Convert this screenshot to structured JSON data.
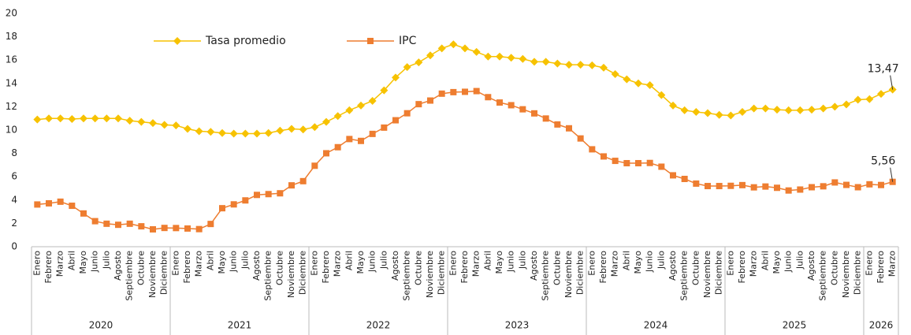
{
  "chart_data": {
    "type": "line",
    "categories": [
      "Enero",
      "Febrero",
      "Marzo",
      "Abril",
      "Mayo",
      "Junio",
      "Julio",
      "Agosto",
      "Septiembre",
      "Octubre",
      "Noviembre",
      "Diciembre",
      "Enero",
      "Febrero",
      "Marzo",
      "Abril",
      "Mayo",
      "Junio",
      "Julio",
      "Agosto",
      "Septiembre",
      "Octubre",
      "Noviembre",
      "Diciembre",
      "Enero",
      "Febrero",
      "Marzo",
      "Abril",
      "Mayo",
      "Junio",
      "Julio",
      "Agosto",
      "Septiembre",
      "Octubre",
      "Noviembre",
      "Diciembre",
      "Enero",
      "Febrero",
      "Marzo",
      "Abril",
      "Mayo",
      "Junio",
      "Julio",
      "Agosto",
      "Septiembre",
      "Octubre",
      "Noviembre",
      "Diciembre",
      "Enero",
      "Febrero",
      "Marzo",
      "Abril",
      "Mayo",
      "Junio",
      "Julio",
      "Agosto",
      "Septiembre",
      "Octubre",
      "Noviembre",
      "Diciembre",
      "Enero",
      "Febrero",
      "Marzo",
      "Abril",
      "Mayo",
      "Junio",
      "Julio",
      "Agosto",
      "Septiembre",
      "Octubre",
      "Noviembre",
      "Diciembre",
      "Enero",
      "Febrero",
      "Marzo"
    ],
    "category_groups": [
      "2020",
      "2021",
      "2022",
      "2023",
      "2024",
      "2025",
      "2026"
    ],
    "series": [
      {
        "name": "Tasa promedio",
        "color": "#f7c200",
        "marker": "diamond",
        "values": [
          10.9,
          11.0,
          11.0,
          10.95,
          11.0,
          11.0,
          11.0,
          11.0,
          10.8,
          10.7,
          10.6,
          10.45,
          10.4,
          10.1,
          9.9,
          9.85,
          9.75,
          9.7,
          9.7,
          9.7,
          9.75,
          9.95,
          10.1,
          10.05,
          10.25,
          10.7,
          11.2,
          11.7,
          12.1,
          12.5,
          13.4,
          14.5,
          15.4,
          15.8,
          16.4,
          17.0,
          17.35,
          17.0,
          16.7,
          16.3,
          16.3,
          16.2,
          16.1,
          15.85,
          15.85,
          15.7,
          15.6,
          15.6,
          15.55,
          15.35,
          14.8,
          14.35,
          14.0,
          13.85,
          13.0,
          12.1,
          11.7,
          11.55,
          11.45,
          11.3,
          11.25,
          11.55,
          11.85,
          11.85,
          11.75,
          11.7,
          11.7,
          11.75,
          11.85,
          12.0,
          12.2,
          12.6,
          12.65,
          13.1,
          13.47
        ],
        "value_labels": [
          null,
          null,
          null,
          null,
          null,
          null,
          null,
          null,
          null,
          null,
          null,
          null,
          null,
          null,
          null,
          null,
          null,
          null,
          null,
          null,
          null,
          null,
          null,
          null,
          null,
          null,
          null,
          null,
          null,
          null,
          null,
          null,
          null,
          null,
          null,
          null,
          null,
          null,
          null,
          null,
          null,
          null,
          null,
          null,
          null,
          null,
          null,
          null,
          null,
          null,
          null,
          null,
          null,
          null,
          null,
          null,
          null,
          null,
          null,
          null,
          null,
          null,
          null,
          null,
          null,
          null,
          null,
          null,
          null,
          null,
          null,
          null,
          null,
          null,
          "13,47"
        ]
      },
      {
        "name": "IPC",
        "color": "#ee7d30",
        "marker": "square",
        "values": [
          3.62,
          3.72,
          3.86,
          3.51,
          2.85,
          2.19,
          1.97,
          1.88,
          1.97,
          1.75,
          1.49,
          1.61,
          1.6,
          1.56,
          1.51,
          1.95,
          3.3,
          3.63,
          3.97,
          4.44,
          4.51,
          4.58,
          5.26,
          5.62,
          6.94,
          8.01,
          8.53,
          9.23,
          9.07,
          9.67,
          10.21,
          10.84,
          11.44,
          12.22,
          12.53,
          13.12,
          13.25,
          13.28,
          13.34,
          12.82,
          12.36,
          12.13,
          11.78,
          11.43,
          10.99,
          10.48,
          10.15,
          9.28,
          8.35,
          7.74,
          7.36,
          7.16,
          7.16,
          7.18,
          6.86,
          6.12,
          5.81,
          5.41,
          5.2,
          5.2,
          5.22,
          5.28,
          5.09,
          5.16,
          5.05,
          4.82,
          4.9,
          5.1,
          5.18,
          5.51,
          5.3,
          5.1,
          5.35,
          5.29,
          5.56
        ],
        "value_labels": [
          null,
          null,
          null,
          null,
          null,
          null,
          null,
          null,
          null,
          null,
          null,
          null,
          null,
          null,
          null,
          null,
          null,
          null,
          null,
          null,
          null,
          null,
          null,
          null,
          null,
          null,
          null,
          null,
          null,
          null,
          null,
          null,
          null,
          null,
          null,
          null,
          null,
          null,
          null,
          null,
          null,
          null,
          null,
          null,
          null,
          null,
          null,
          null,
          null,
          null,
          null,
          null,
          null,
          null,
          null,
          null,
          null,
          null,
          null,
          null,
          null,
          null,
          null,
          null,
          null,
          null,
          null,
          null,
          null,
          null,
          null,
          null,
          null,
          null,
          "5,56"
        ]
      }
    ],
    "ylim": [
      0,
      20
    ],
    "yticks": [
      0,
      2,
      4,
      6,
      8,
      10,
      12,
      14,
      16,
      18,
      20
    ],
    "grid": false,
    "legend": "top-left"
  }
}
